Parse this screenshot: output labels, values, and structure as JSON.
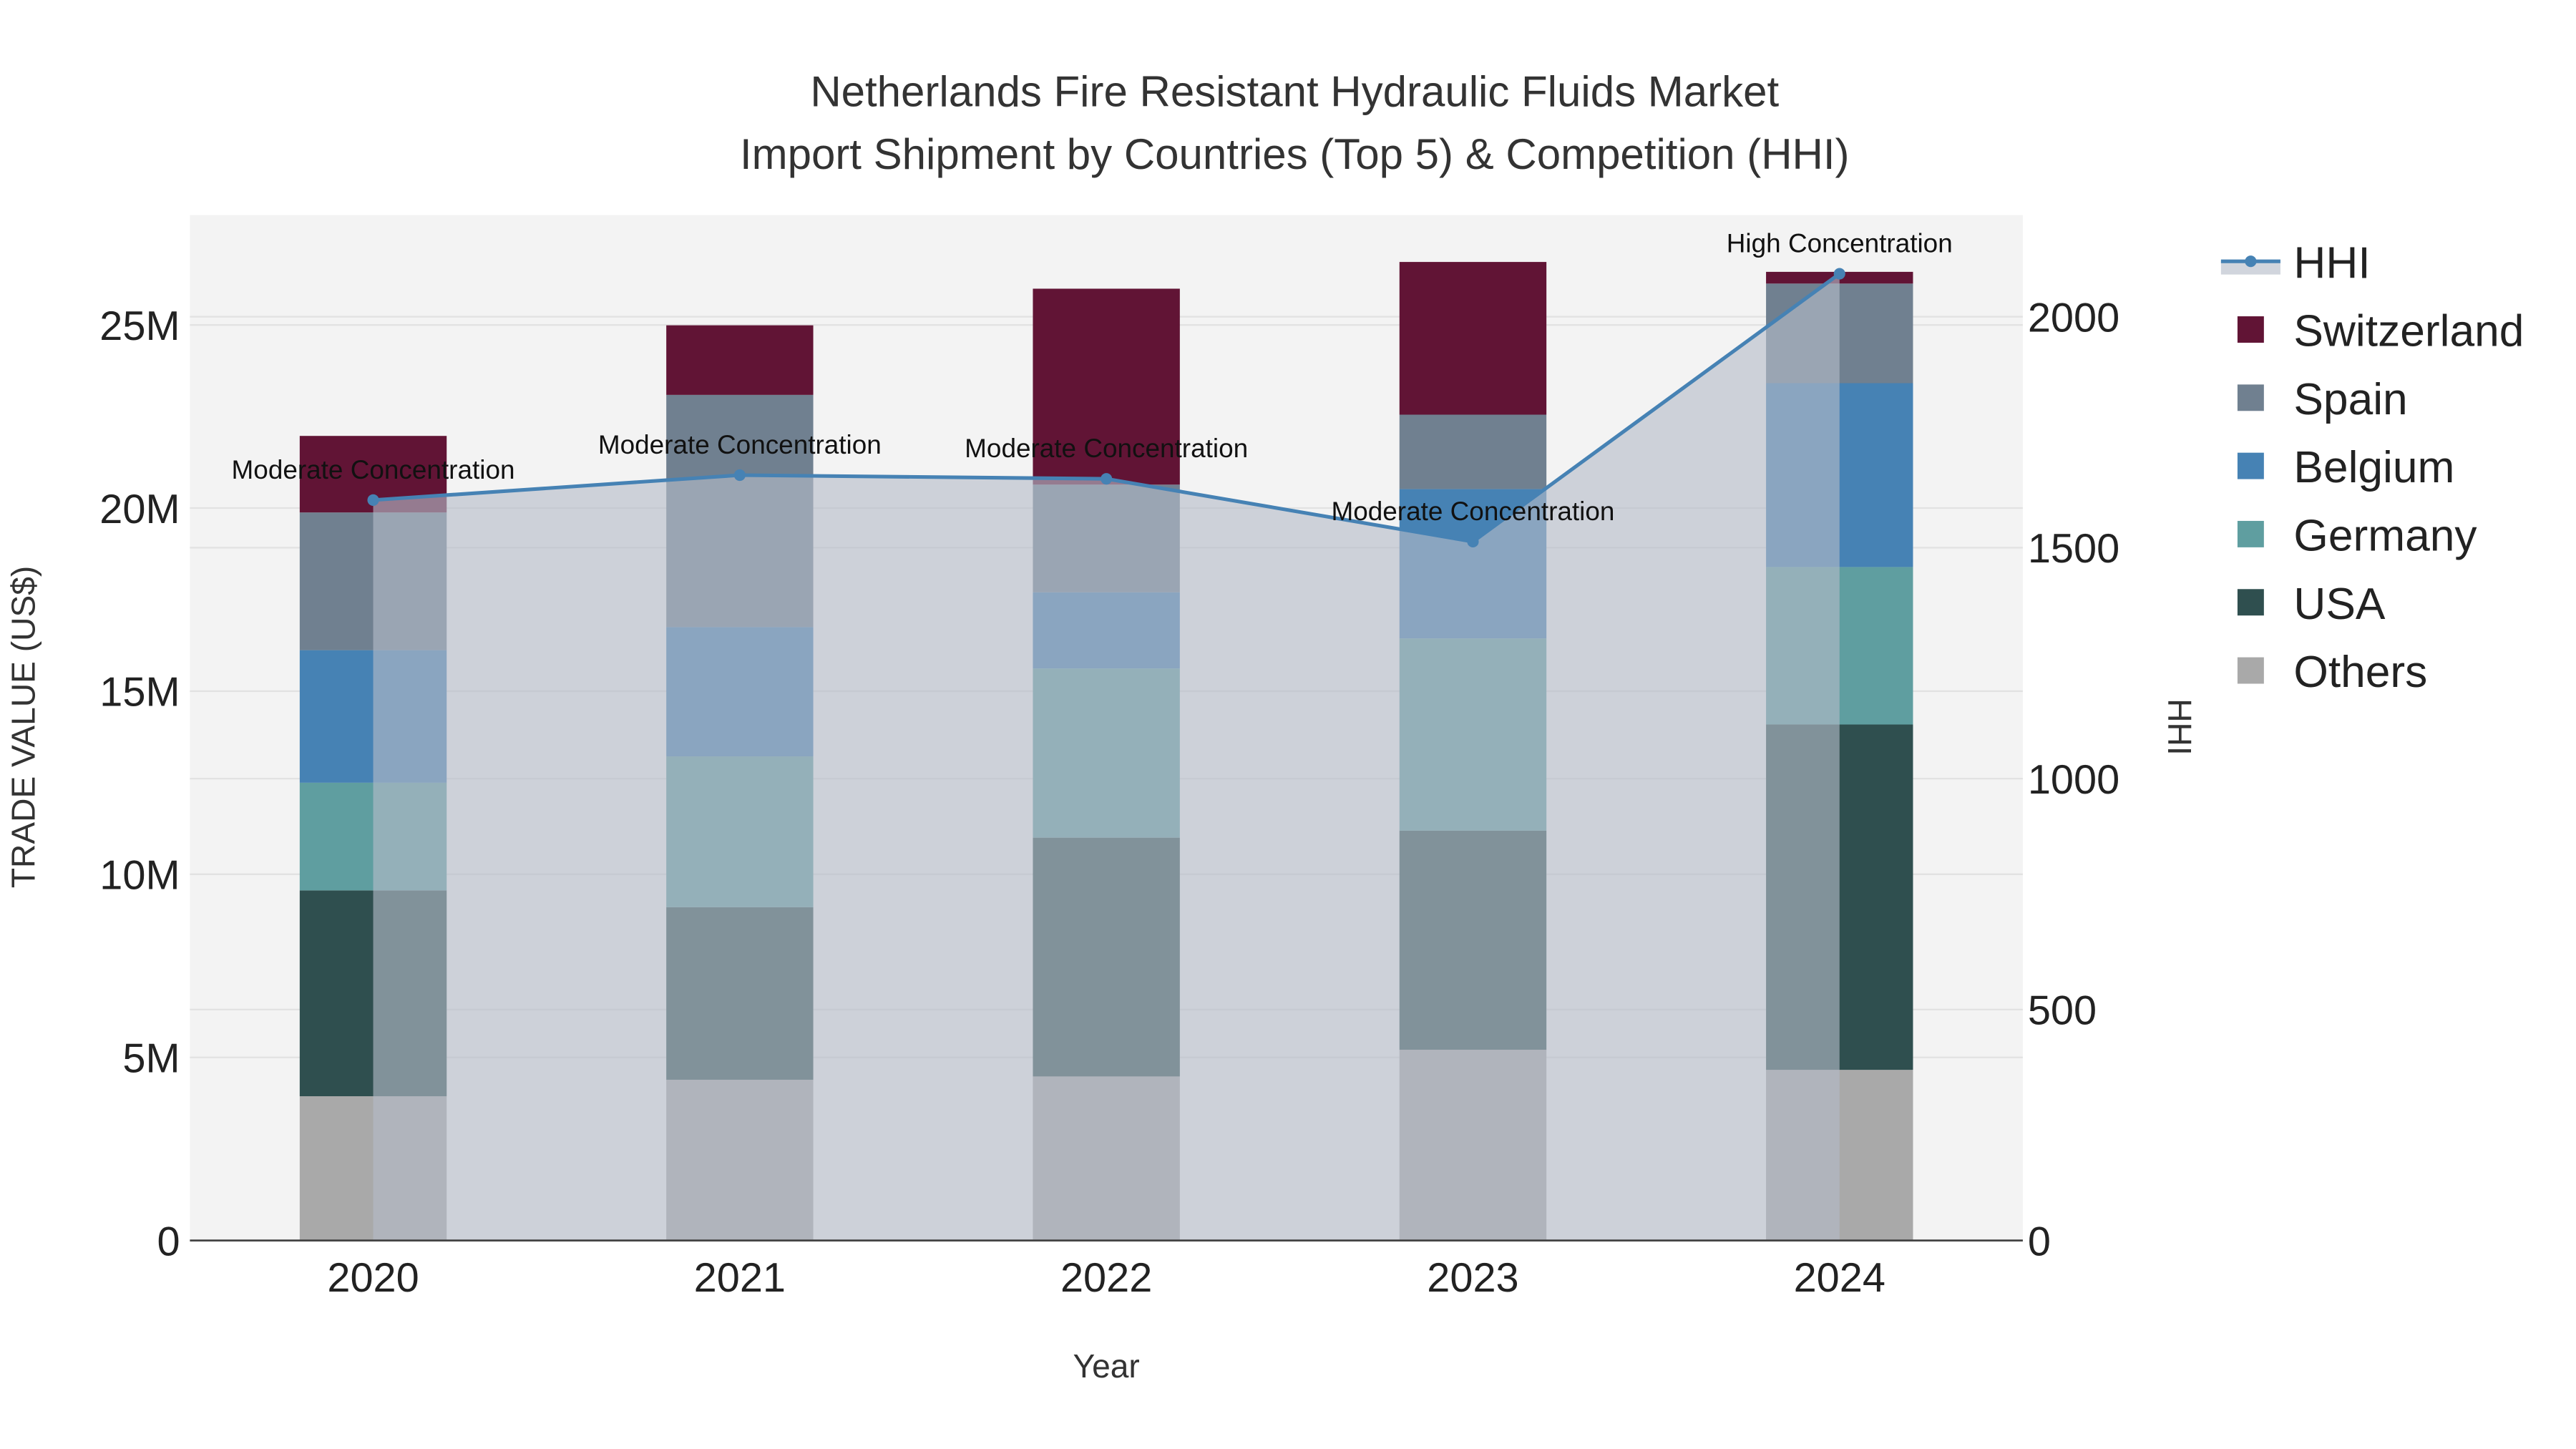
{
  "chart_data": {
    "type": "bar",
    "stacked": true,
    "title": "Netherlands Fire Resistant Hydraulic Fluids Market",
    "subtitle": "Import Shipment by Countries (Top 5) & Competition (HHI)",
    "xlabel": "Year",
    "ylabel": "TRADE VALUE (US$)",
    "y2label": "HHI",
    "categories": [
      "2020",
      "2021",
      "2022",
      "2023",
      "2024"
    ],
    "ylim": [
      0,
      28000000
    ],
    "y2lim": [
      0,
      2220
    ],
    "yticks": [
      {
        "v": 0,
        "label": "0"
      },
      {
        "v": 5000000,
        "label": "5M"
      },
      {
        "v": 10000000,
        "label": "10M"
      },
      {
        "v": 15000000,
        "label": "15M"
      },
      {
        "v": 20000000,
        "label": "20M"
      },
      {
        "v": 25000000,
        "label": "25M"
      }
    ],
    "y2ticks": [
      {
        "v": 0,
        "label": "0"
      },
      {
        "v": 500,
        "label": "500"
      },
      {
        "v": 1000,
        "label": "1000"
      },
      {
        "v": 1500,
        "label": "1500"
      },
      {
        "v": 2000,
        "label": "2000"
      }
    ],
    "series": [
      {
        "name": "Others",
        "color": "#A9A9A9",
        "values": [
          3940000,
          4390000,
          4480000,
          5210000,
          4660000
        ]
      },
      {
        "name": "USA",
        "color": "#2F4F4F",
        "values": [
          5620000,
          4710000,
          6520000,
          5980000,
          9430000
        ]
      },
      {
        "name": "Germany",
        "color": "#5F9EA0",
        "values": [
          2940000,
          4120000,
          4620000,
          5250000,
          4300000
        ]
      },
      {
        "name": "Belgium",
        "color": "#4682B4",
        "values": [
          3620000,
          3530000,
          2080000,
          4080000,
          5020000
        ]
      },
      {
        "name": "Spain",
        "color": "#708090",
        "values": [
          3760000,
          6340000,
          2940000,
          2030000,
          2720000
        ]
      },
      {
        "name": "Switzerland",
        "color": "#611435",
        "values": [
          2090000,
          1900000,
          5350000,
          4170000,
          320000
        ]
      }
    ],
    "hhi": {
      "name": "HHI",
      "color": "#4682B4",
      "values": [
        1603,
        1657,
        1649,
        1513,
        2093
      ],
      "annotations": [
        "Moderate Concentration",
        "Moderate Concentration",
        "Moderate Concentration",
        "Moderate Concentration",
        "High Concentration"
      ]
    },
    "legend": {
      "placement": "right",
      "order": [
        "HHI",
        "Switzerland",
        "Spain",
        "Belgium",
        "Germany",
        "USA",
        "Others"
      ]
    }
  }
}
